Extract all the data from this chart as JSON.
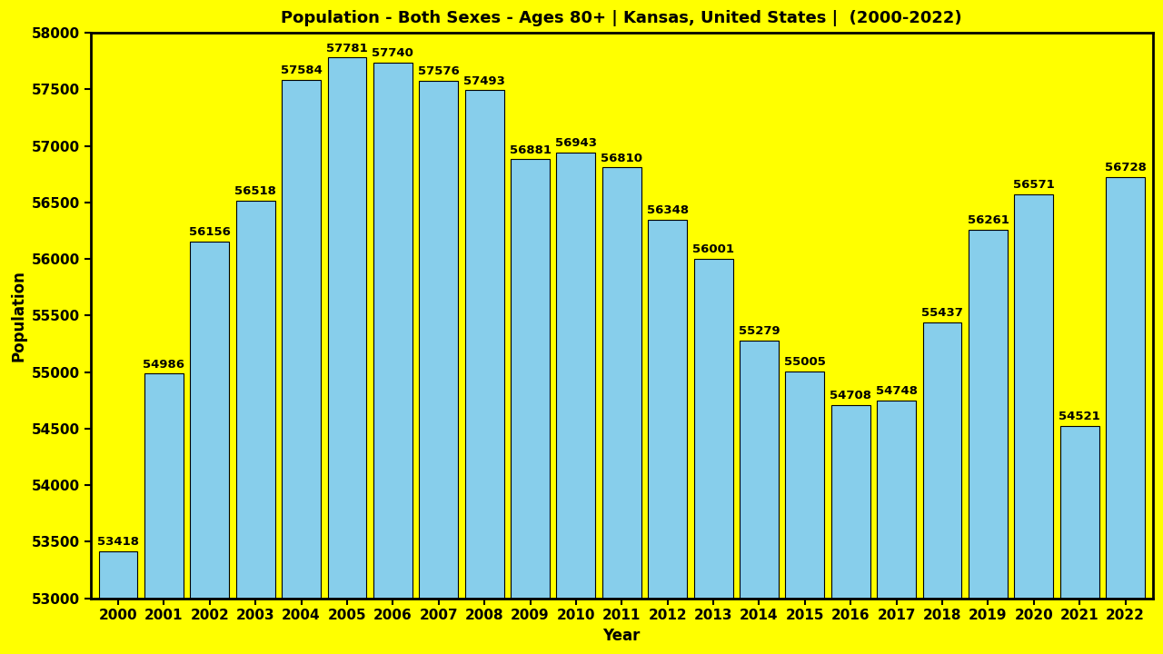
{
  "title": "Population - Both Sexes - Ages 80+ | Kansas, United States |  (2000-2022)",
  "xlabel": "Year",
  "ylabel": "Population",
  "background_color": "#FFFF00",
  "bar_color": "#87CEEB",
  "bar_edge_color": "#000000",
  "years": [
    2000,
    2001,
    2002,
    2003,
    2004,
    2005,
    2006,
    2007,
    2008,
    2009,
    2010,
    2011,
    2012,
    2013,
    2014,
    2015,
    2016,
    2017,
    2018,
    2019,
    2020,
    2021,
    2022
  ],
  "values": [
    53418,
    54986,
    56156,
    56518,
    57584,
    57781,
    57740,
    57576,
    57493,
    56881,
    56943,
    56810,
    56348,
    56001,
    55279,
    55005,
    54708,
    54748,
    55437,
    56261,
    56571,
    54521,
    56728
  ],
  "ylim": [
    53000,
    58000
  ],
  "ybase": 53000,
  "ytick_step": 500,
  "title_fontsize": 13,
  "axis_label_fontsize": 12,
  "tick_fontsize": 11,
  "value_fontsize": 9.5,
  "bar_width": 0.85
}
